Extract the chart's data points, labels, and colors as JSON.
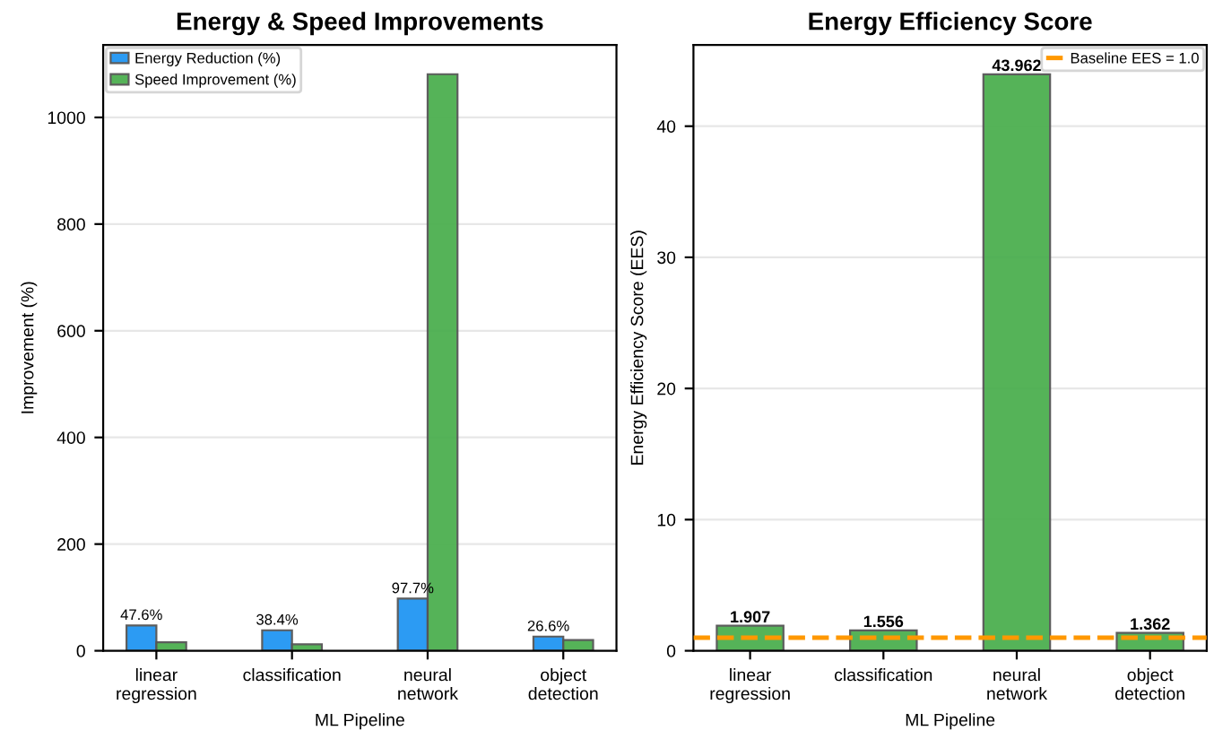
{
  "chart_data": [
    {
      "type": "bar",
      "title": "Energy & Speed Improvements",
      "xlabel": "ML Pipeline",
      "ylabel": "Improvement (%)",
      "categories": [
        "linear\nregression",
        "classification",
        "neural\nnetwork",
        "object\ndetection"
      ],
      "series": [
        {
          "name": "Energy Reduction (%)",
          "color": "#2196f3",
          "values": [
            47.6,
            38.4,
            97.7,
            26.6
          ],
          "value_labels": [
            "47.6%",
            "38.4%",
            "97.7%",
            "26.6%"
          ]
        },
        {
          "name": "Speed Improvement (%)",
          "color": "#4caf50",
          "values": [
            16,
            12,
            1081,
            20
          ]
        }
      ],
      "ylim": [
        0,
        1136
      ],
      "yticks": [
        0,
        200,
        400,
        600,
        800,
        1000
      ],
      "grid": "y",
      "legend": "top left"
    },
    {
      "type": "bar",
      "title": "Energy Efficiency Score",
      "xlabel": "ML Pipeline",
      "ylabel": "Energy Efficiency Score (EES)",
      "categories": [
        "linear\nregression",
        "classification",
        "neural\nnetwork",
        "object\ndetection"
      ],
      "series": [
        {
          "color": "#4caf50",
          "values": [
            1.907,
            1.556,
            43.962,
            1.362
          ]
        }
      ],
      "data_labels": true,
      "ref_lines": [
        {
          "axis": "y",
          "value": 1.0,
          "label": "Baseline EES = 1.0",
          "color": "#ff9800",
          "line_style": "dashed"
        }
      ],
      "ylim": [
        0,
        46.2
      ],
      "yticks": [
        0,
        10,
        20,
        30,
        40
      ],
      "grid": "y",
      "legend": "top right"
    }
  ]
}
